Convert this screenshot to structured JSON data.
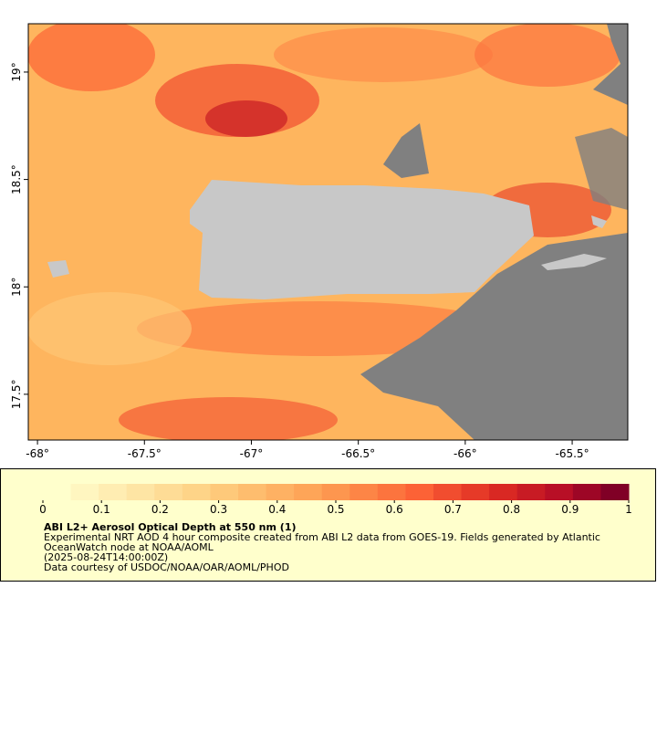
{
  "map": {
    "lon_range": [
      -68.043,
      -65.24
    ],
    "lat_range": [
      17.287,
      19.225
    ],
    "lon_ticks": [
      {
        "value": -68,
        "label": "-68°"
      },
      {
        "value": -67.5,
        "label": "-67.5°"
      },
      {
        "value": -67,
        "label": "-67°"
      },
      {
        "value": -66.5,
        "label": "-66.5°"
      },
      {
        "value": -66,
        "label": "-66°"
      },
      {
        "value": -65.5,
        "label": "-65.5°"
      }
    ],
    "lat_ticks": [
      {
        "value": 17.5,
        "label": "17.5°"
      },
      {
        "value": 18,
        "label": "18°"
      },
      {
        "value": 18.5,
        "label": "18.5°"
      },
      {
        "value": 19,
        "label": "19°"
      }
    ]
  },
  "colorbar": {
    "range": [
      0,
      1
    ],
    "ticks": [
      0,
      0.1,
      0.2,
      0.3,
      0.4,
      0.5,
      0.6,
      0.7,
      0.8,
      0.9,
      1
    ],
    "colors": [
      "#ffffcc",
      "#fff6c0",
      "#ffedb2",
      "#fee5a4",
      "#fedc96",
      "#fed488",
      "#fec97a",
      "#febd6e",
      "#feb163",
      "#fea558",
      "#fd964f",
      "#fd8546",
      "#fc743e",
      "#fc6236",
      "#f14d2f",
      "#e63a28",
      "#d92823",
      "#c81b24",
      "#b80f26",
      "#9d0626",
      "#800026"
    ]
  },
  "caption": {
    "title": "ABI L2+ Aerosol Optical Depth at 550 nm (1)",
    "lines": [
      "Experimental NRT AOD 4 hour composite created from ABI L2 data from GOES-19. Fields generated by Atlantic",
      "OceanWatch node at NOAA/AOML",
      "(2025-08-24T14:00:00Z)",
      "Data courtesy of USDOC/NOAA/OAR/AOML/PHOD"
    ]
  }
}
